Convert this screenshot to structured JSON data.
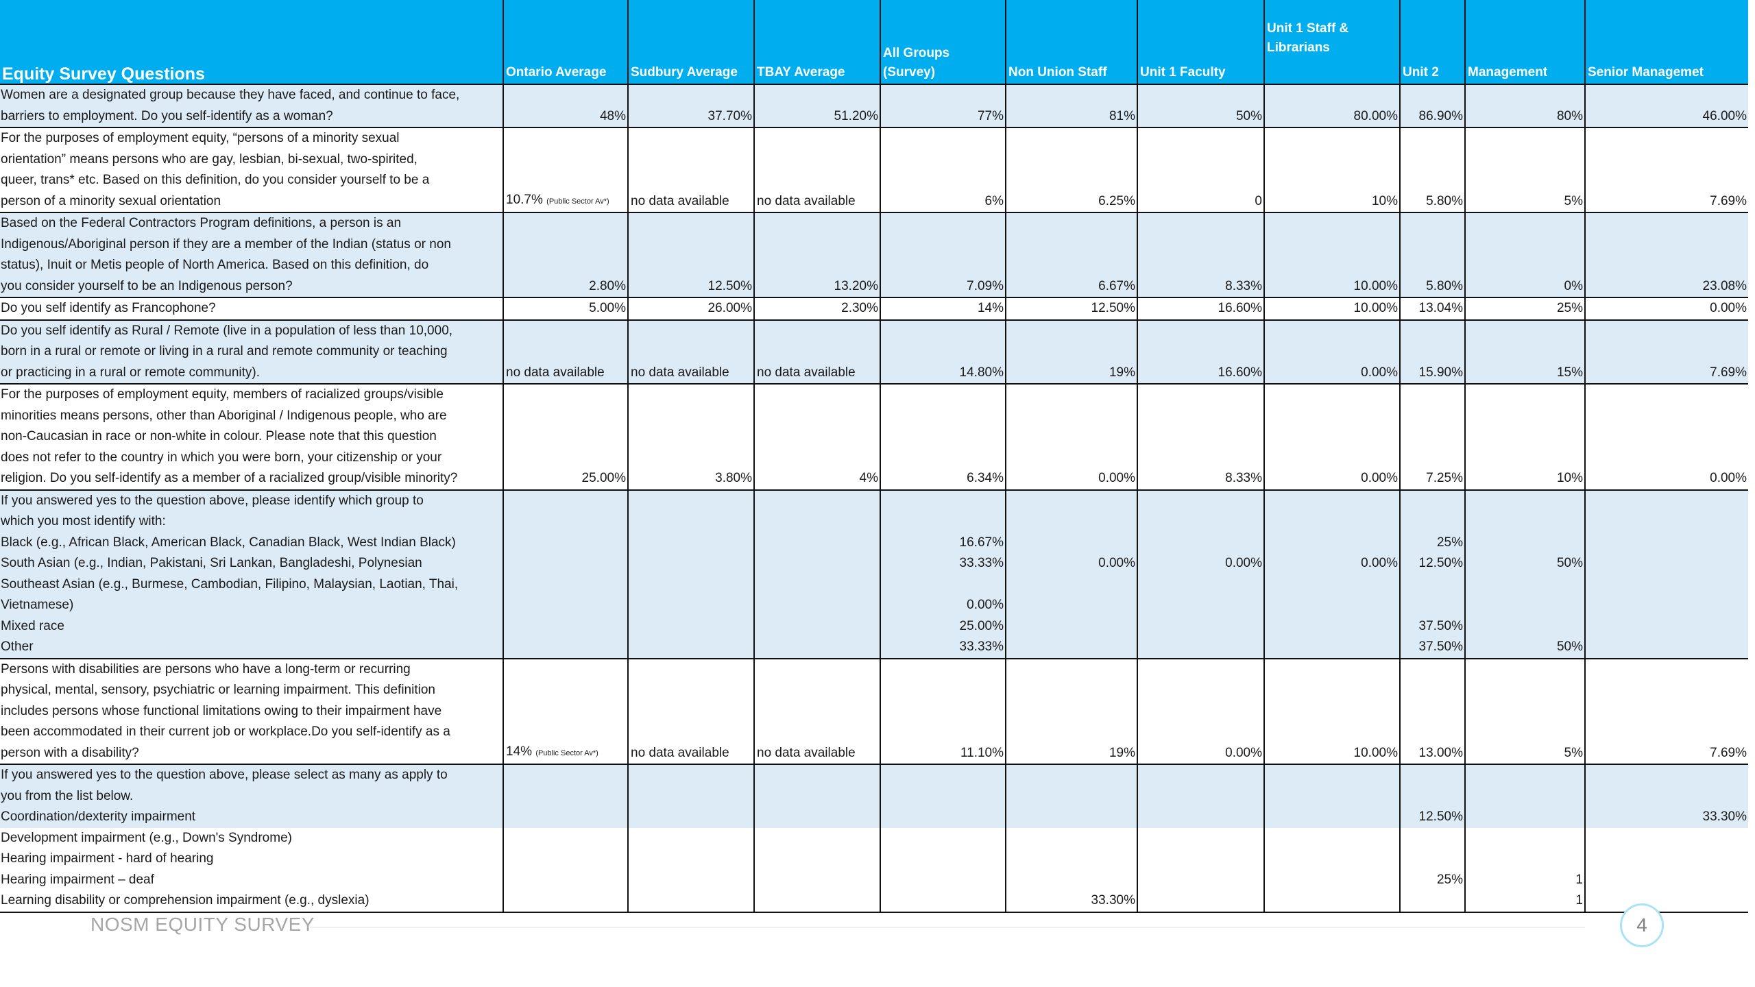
{
  "headers": [
    "Equity Survey Questions",
    "Ontario Average",
    "Sudbury Average",
    "TBAY Average",
    "All Groups (Survey)",
    "Non Union Staff",
    "Unit 1 Faculty",
    "Unit 1 Staff & Librarians",
    "Unit 2",
    "Management",
    "Senior Managemet"
  ],
  "rows": [
    {
      "style": "blue",
      "cells": [
        "Women are a  designated group because they have faced, and continue to face,\nbarriers to employment. Do you self-identify as a woman?",
        "48%",
        "37.70%",
        "51.20%",
        "77%",
        "81%",
        "50%",
        "80.00%",
        "86.90%",
        "80%",
        "46.00%"
      ]
    },
    {
      "style": "white",
      "cells": [
        "For the purposes of employment equity, “persons of a minority sexual\norientation” means persons who are gay, lesbian, bi-sexual, two-spirited,\nqueer, trans* etc. Based on this definition, do you consider yourself to be a\nperson of a minority sexual orientation",
        "10.7%",
        "no data available",
        "no data available",
        "6%",
        "6.25%",
        "0",
        "10%",
        "5.80%",
        "5%",
        "7.69%"
      ]
    },
    {
      "style": "blue",
      "cells": [
        "Based on the Federal Contractors Program definitions, a person is an\nIndigenous/Aboriginal person if they are a member of the Indian (status or non\nstatus), Inuit or Metis people of North America. Based on this definition, do\nyou consider yourself to be an Indigenous person?",
        "2.80%",
        "12.50%",
        "13.20%",
        "7.09%",
        "6.67%",
        "8.33%",
        "10.00%",
        "5.80%",
        "0%",
        "23.08%"
      ]
    },
    {
      "style": "white",
      "cells": [
        "Do you self identify as Francophone?",
        "5.00%",
        "26.00%",
        "2.30%",
        "14%",
        "12.50%",
        "16.60%",
        "10.00%",
        "13.04%",
        "25%",
        "0.00%"
      ]
    },
    {
      "style": "blue",
      "cells": [
        "Do you self identify as Rural / Remote (live in a population of less than 10,000,\nborn in a rural or remote or living in a rural and remote community or teaching\nor practicing in a rural or remote community).",
        "no data available",
        "no data available",
        "no data available",
        "14.80%",
        "19%",
        "16.60%",
        "0.00%",
        "15.90%",
        "15%",
        "7.69%"
      ]
    },
    {
      "style": "white",
      "cells": [
        "For the purposes of employment equity, members of racialized groups/visible\nminorities means persons, other than Aboriginal / Indigenous people, who are\nnon-Caucasian in race or non-white in colour. Please note that this question\ndoes not refer to the country in which you were born, your citizenship or your\nreligion. Do you self-identify as a member of a racialized group/visible minority?",
        "25.00%",
        "3.80%",
        "4%",
        "6.34%",
        "0.00%",
        "8.33%",
        "0.00%",
        "7.25%",
        "10%",
        "0.00%"
      ]
    },
    {
      "style": "blue",
      "cells": [
        "If you answered yes to the question above, please identify which group to\nwhich you most identify with:\nBlack (e.g., African Black, American Black, Canadian Black, West Indian Black)\nSouth Asian (e.g., Indian, Pakistani, Sri Lankan, Bangladeshi, Polynesian\nSoutheast Asian (e.g., Burmese, Cambodian, Filipino, Malaysian, Laotian, Thai,\nVietnamese)\nMixed race\nOther",
        "",
        "",
        "",
        "16.67%\n33.33%\n\n0.00%\n25.00%\n33.33%",
        "0.00%\n\n\n\n\n",
        "0.00%\n\n\n\n\n",
        "0.00%\n\n\n\n\n",
        "25%\n12.50%\n\n\n37.50%\n37.50%",
        "\n50%\n\n\n\n50%",
        ""
      ]
    },
    {
      "style": "white",
      "cells": [
        "Persons with disabilities are persons who have a long-term or recurring\nphysical, mental, sensory, psychiatric or learning impairment. This definition\nincludes persons whose functional limitations owing to their impairment have\nbeen accommodated in their current job or workplace.Do you self-identify as a\nperson with a disability?",
        "14%",
        "no data available",
        "no data available",
        "11.10%",
        "19%",
        "0.00%",
        "10.00%",
        "13.00%",
        "5%",
        "7.69%"
      ]
    },
    {
      "style": "blue",
      "cells": [
        "If you answered yes to the question above, please select as many as apply to\nyou from the list below.\nCoordination/dexterity impairment",
        "",
        "",
        "",
        "",
        "",
        "",
        "",
        "12.50%",
        "",
        "33.30%\n"
      ]
    },
    {
      "style": "white",
      "cells": [
        "Development impairment (e.g., Down's Syndrome)\nHearing impairment - hard of hearing\nHearing impairment – deaf\nLearning disability or comprehension impairment (e.g., dyslexia)",
        "",
        "",
        "",
        "",
        "33.30%\n",
        "",
        "",
        "\n25%\n\n",
        "\n1\n1\n",
        ""
      ]
    }
  ],
  "public_sector_note": "(Public Sector Av*)",
  "footer": {
    "title": "NOSM EQUITY SURVEY",
    "page": "4"
  }
}
